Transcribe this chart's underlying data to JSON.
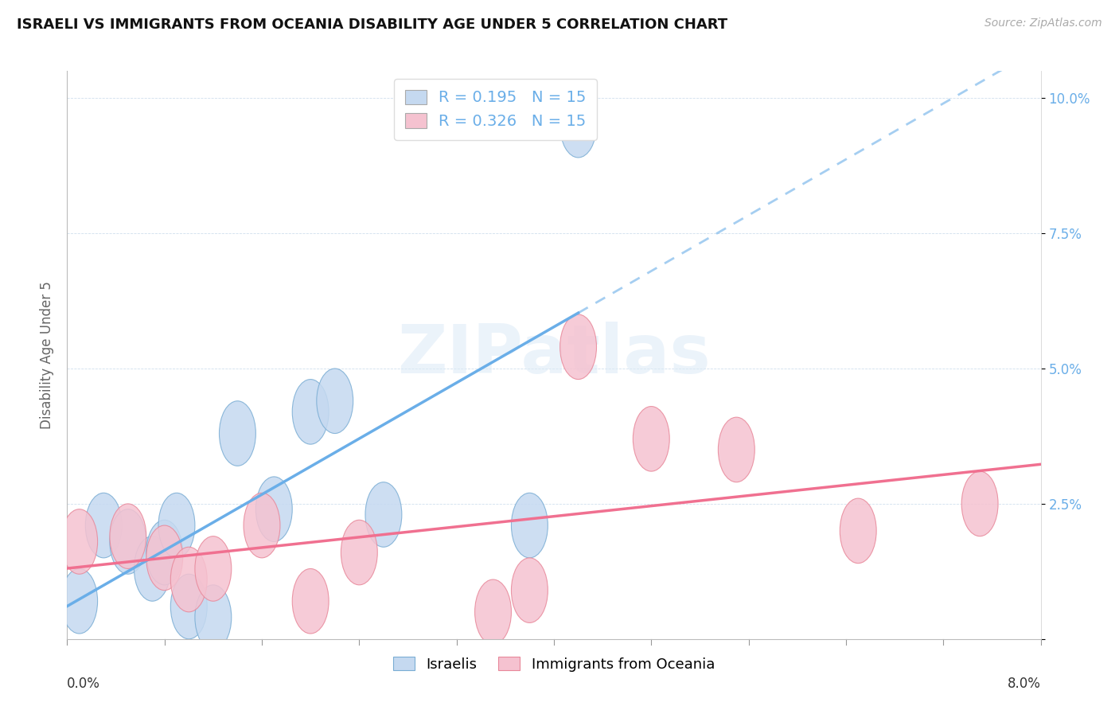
{
  "title": "ISRAELI VS IMMIGRANTS FROM OCEANIA DISABILITY AGE UNDER 5 CORRELATION CHART",
  "source": "Source: ZipAtlas.com",
  "ylabel": "Disability Age Under 5",
  "xlim": [
    0.0,
    0.08
  ],
  "ylim": [
    0.0,
    0.105
  ],
  "yticks": [
    0.0,
    0.025,
    0.05,
    0.075,
    0.1
  ],
  "ytick_labels": [
    "",
    "2.5%",
    "5.0%",
    "7.5%",
    "10.0%"
  ],
  "r_israeli": 0.195,
  "n_israeli": 15,
  "r_oceania": 0.326,
  "n_oceania": 15,
  "blue_face": "#c5d9f0",
  "blue_edge": "#7aadd4",
  "blue_line": "#6aaee8",
  "pink_face": "#f5c2d0",
  "pink_edge": "#e8889a",
  "pink_line": "#f07090",
  "grid_color": "#d0dfee",
  "watermark_color": "#dceaf7",
  "israelis_x": [
    0.001,
    0.003,
    0.005,
    0.007,
    0.008,
    0.009,
    0.01,
    0.012,
    0.014,
    0.017,
    0.02,
    0.022,
    0.026,
    0.038,
    0.042
  ],
  "israelis_y": [
    0.007,
    0.021,
    0.018,
    0.013,
    0.016,
    0.021,
    0.006,
    0.004,
    0.038,
    0.024,
    0.042,
    0.044,
    0.023,
    0.021,
    0.095
  ],
  "oceania_x": [
    0.001,
    0.005,
    0.008,
    0.01,
    0.012,
    0.016,
    0.02,
    0.024,
    0.035,
    0.038,
    0.042,
    0.048,
    0.055,
    0.065,
    0.075
  ],
  "oceania_y": [
    0.018,
    0.019,
    0.015,
    0.011,
    0.013,
    0.021,
    0.007,
    0.016,
    0.005,
    0.009,
    0.054,
    0.037,
    0.035,
    0.02,
    0.025
  ],
  "title_fontsize": 13,
  "source_fontsize": 10,
  "ytick_fontsize": 12,
  "ylabel_fontsize": 12,
  "legend_fontsize": 13,
  "stats_fontsize": 14
}
